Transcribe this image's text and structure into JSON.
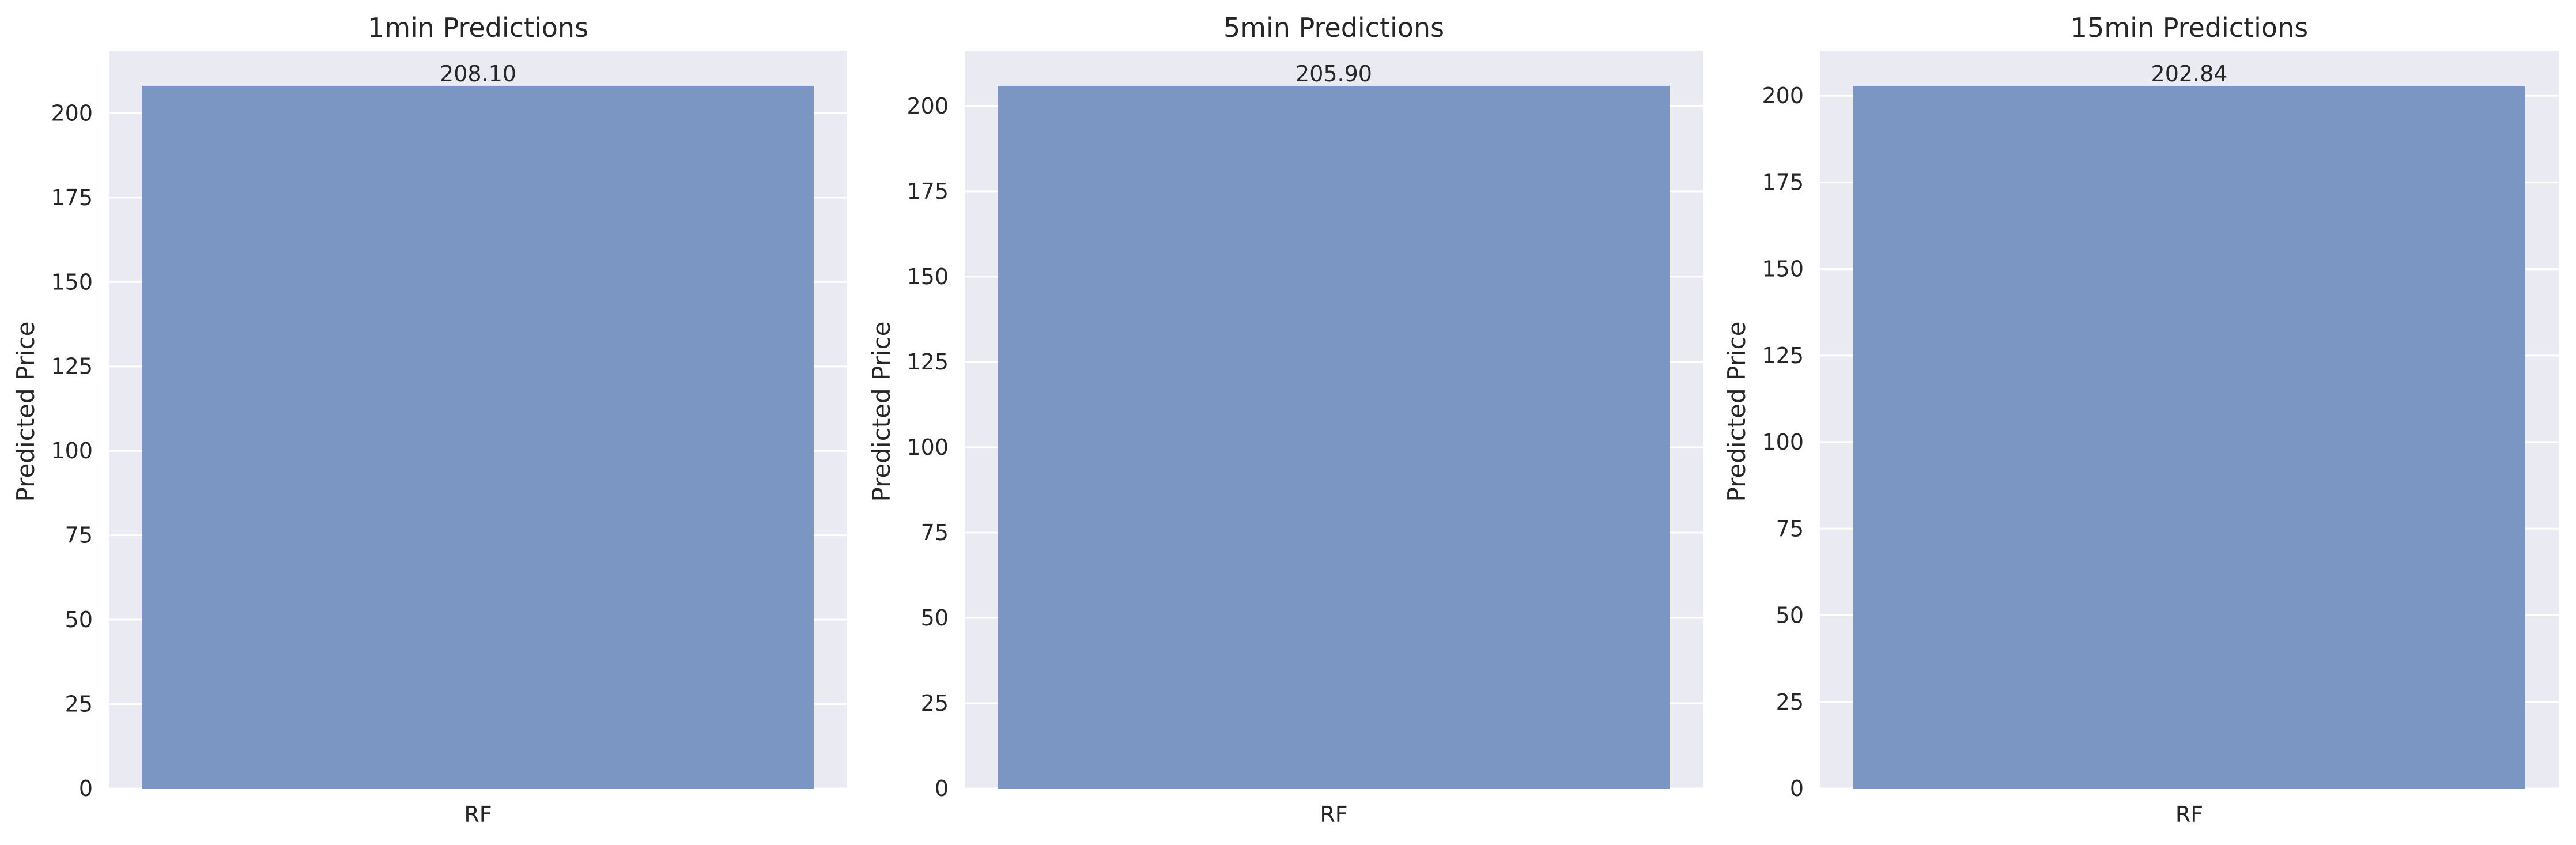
{
  "chart_data": [
    {
      "type": "bar",
      "title": "1min Predictions",
      "categories": [
        "RF"
      ],
      "values": [
        208.1
      ],
      "data_labels": [
        "208.10"
      ],
      "xlabel": "",
      "ylabel": "Predicted Price",
      "ylim": [
        0,
        218.5
      ],
      "yticks": [
        0,
        25,
        50,
        75,
        100,
        125,
        150,
        175,
        200
      ],
      "grid": true,
      "bar_color": "#7b96c2",
      "background": "#eaeaf2"
    },
    {
      "type": "bar",
      "title": "5min Predictions",
      "categories": [
        "RF"
      ],
      "values": [
        205.9
      ],
      "data_labels": [
        "205.90"
      ],
      "xlabel": "",
      "ylabel": "Predicted Price",
      "ylim": [
        0,
        216.2
      ],
      "yticks": [
        0,
        25,
        50,
        75,
        100,
        125,
        150,
        175,
        200
      ],
      "grid": true,
      "bar_color": "#7b96c2",
      "background": "#eaeaf2"
    },
    {
      "type": "bar",
      "title": "15min Predictions",
      "categories": [
        "RF"
      ],
      "values": [
        202.84
      ],
      "data_labels": [
        "202.84"
      ],
      "xlabel": "",
      "ylabel": "Predicted Price",
      "ylim": [
        0,
        213.0
      ],
      "yticks": [
        0,
        25,
        50,
        75,
        100,
        125,
        150,
        175,
        200
      ],
      "grid": true,
      "bar_color": "#7b96c2",
      "background": "#eaeaf2"
    }
  ]
}
